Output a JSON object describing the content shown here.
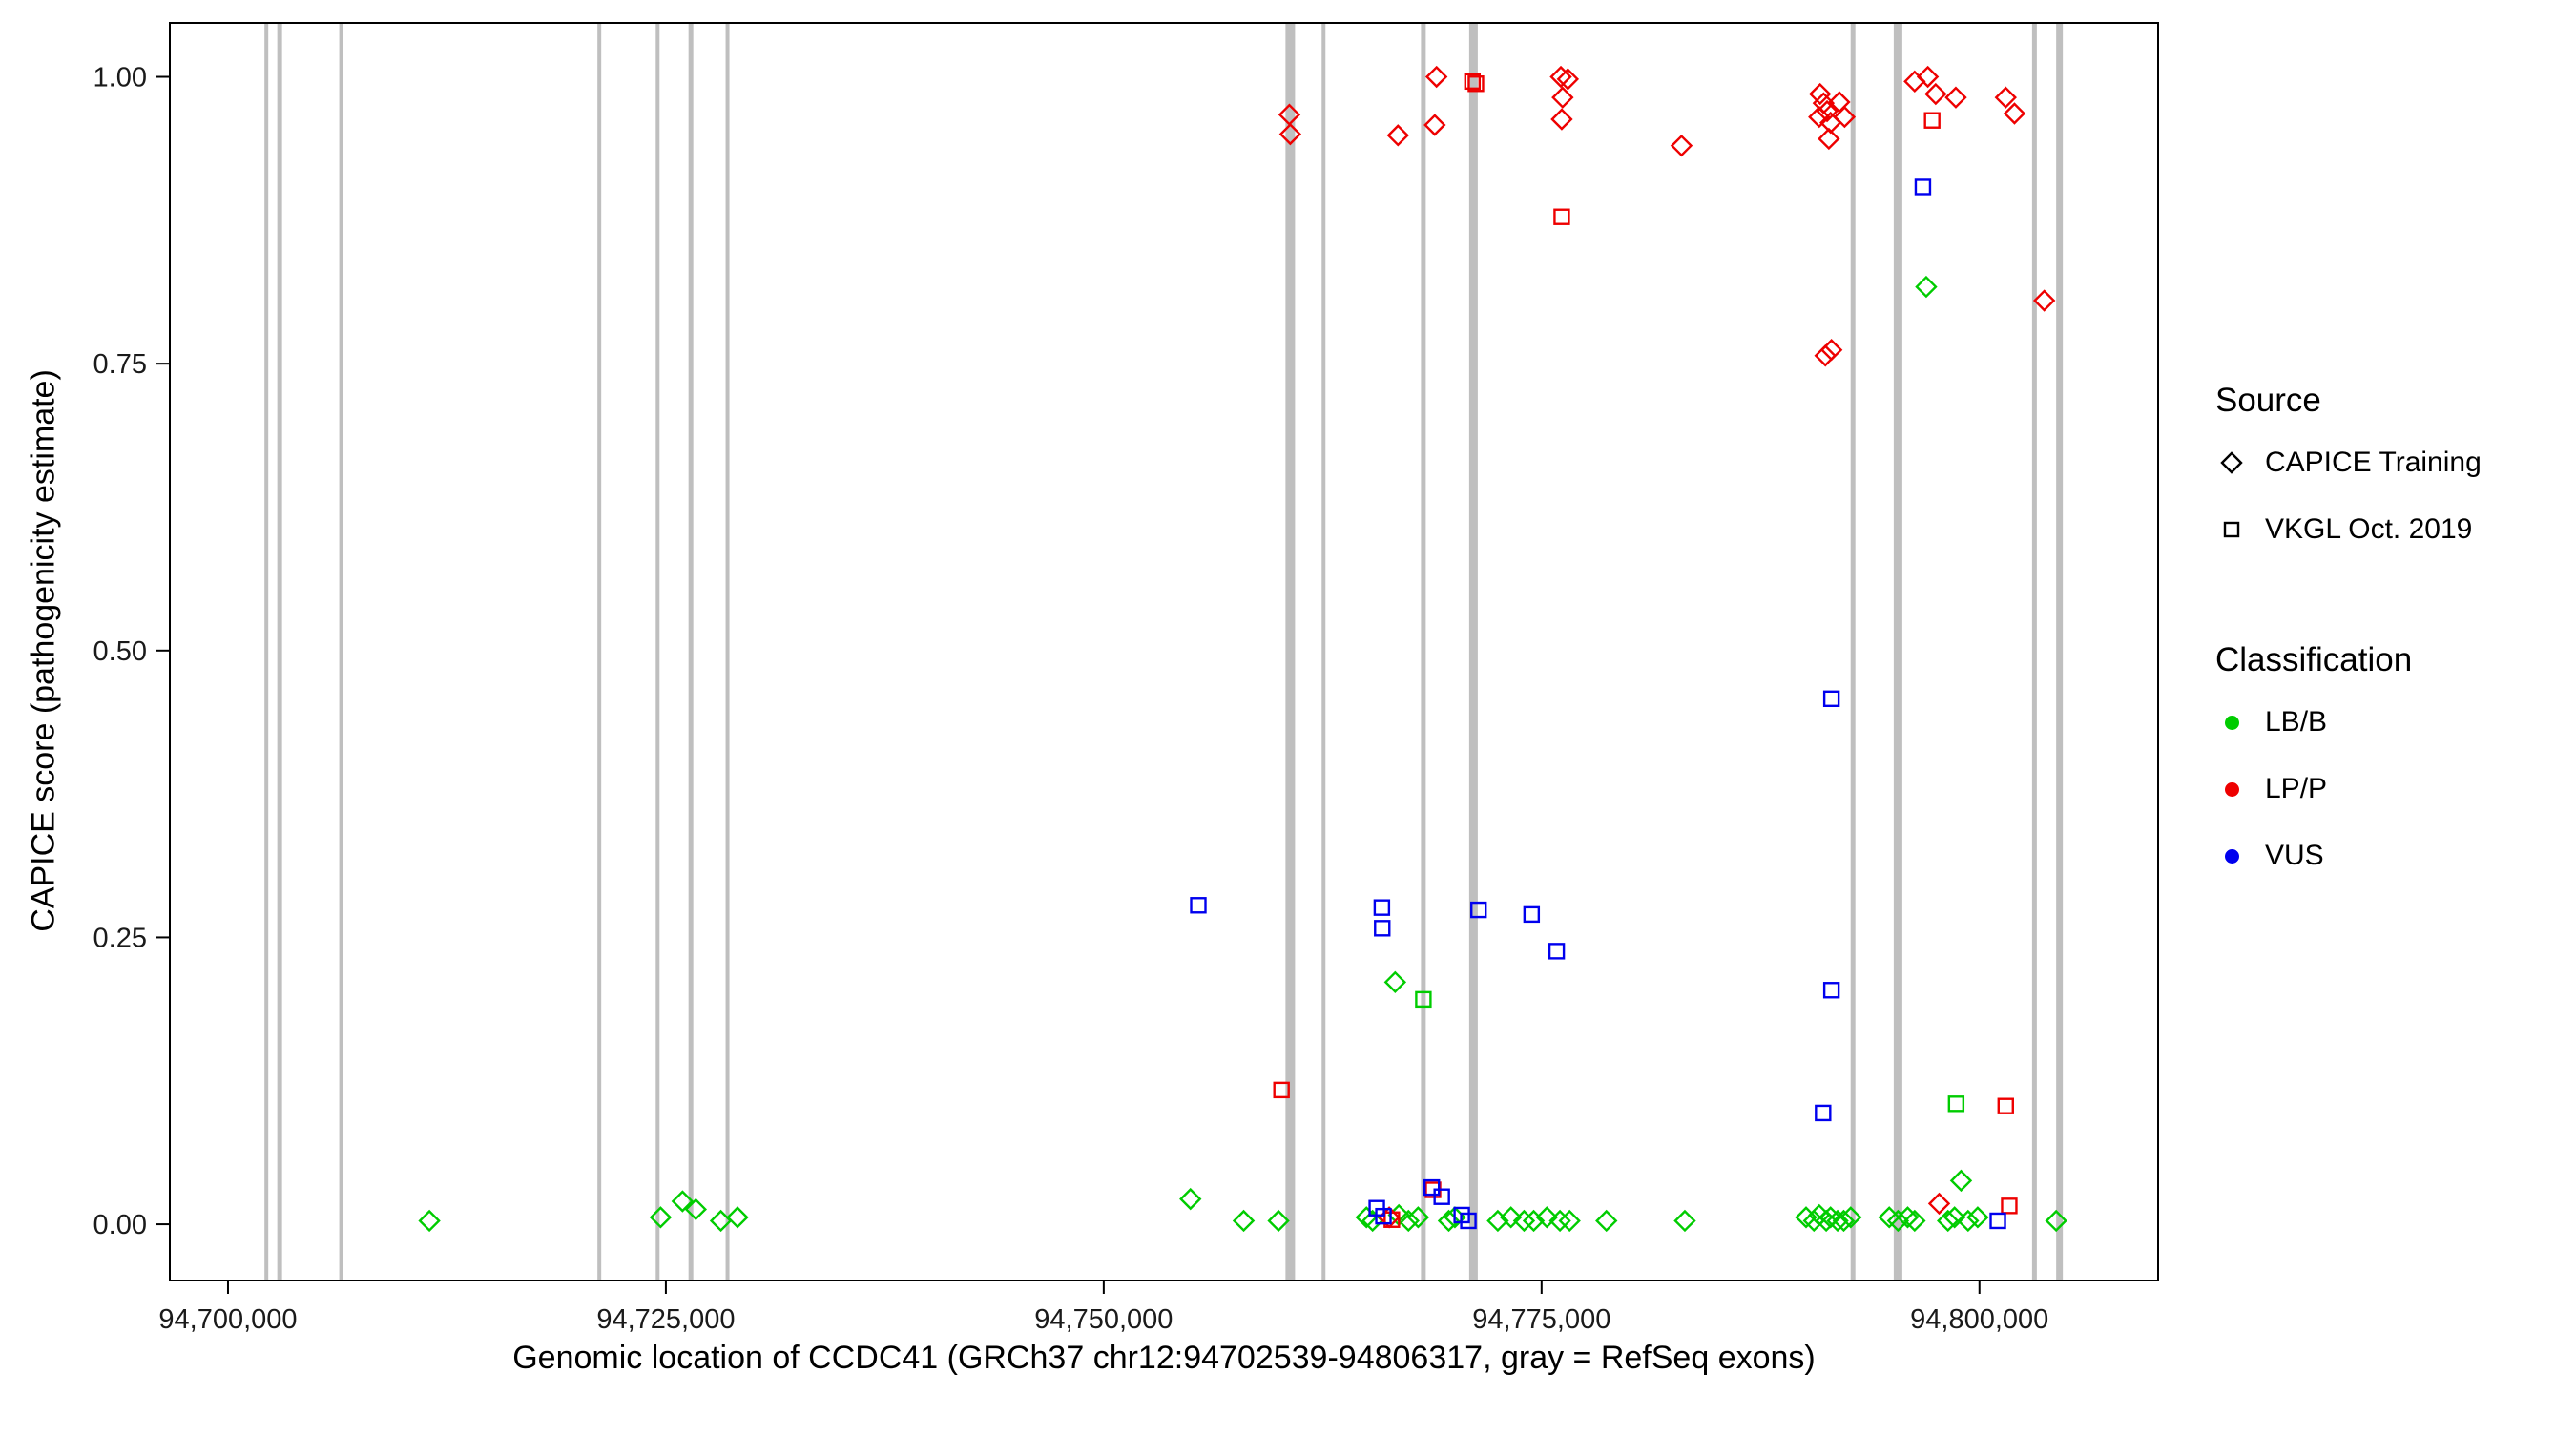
{
  "colors": {
    "lbb": "#00CC00",
    "lpp": "#EE0000",
    "vus": "#0000EE",
    "exon": "#BFBFBF",
    "axis": "#000000"
  },
  "legend": {
    "source": {
      "title": "Source",
      "items": [
        {
          "label": "CAPICE Training",
          "shape": "diamond"
        },
        {
          "label": "VKGL Oct. 2019",
          "shape": "square"
        }
      ]
    },
    "classification": {
      "title": "Classification",
      "items": [
        {
          "label": "LB/B",
          "color_key": "lbb"
        },
        {
          "label": "LP/P",
          "color_key": "lpp"
        },
        {
          "label": "VUS",
          "color_key": "vus"
        }
      ]
    }
  },
  "chart_data": {
    "type": "scatter",
    "title": "",
    "xlabel": "Genomic location of CCDC41 (GRCh37 chr12:94702539-94806317, gray = RefSeq exons)",
    "ylabel": "CAPICE score (pathogenicity estimate)",
    "xlim": [
      94696678,
      94810200
    ],
    "ylim": [
      -0.049,
      1.047
    ],
    "grid": false,
    "legend_position": "right",
    "x_ticks": [
      {
        "value": 94700000,
        "label": "94,700,000"
      },
      {
        "value": 94725000,
        "label": "94,725,000"
      },
      {
        "value": 94750000,
        "label": "94,750,000"
      },
      {
        "value": 94775000,
        "label": "94,775,000"
      },
      {
        "value": 94800000,
        "label": "94,800,000"
      }
    ],
    "y_ticks": [
      {
        "value": 0.0,
        "label": "0.00"
      },
      {
        "value": 0.25,
        "label": "0.25"
      },
      {
        "value": 0.5,
        "label": "0.50"
      },
      {
        "value": 0.75,
        "label": "0.75"
      },
      {
        "value": 1.0,
        "label": "1.00"
      }
    ],
    "exons": [
      [
        94702190,
        4
      ],
      [
        94702950,
        5
      ],
      [
        94706460,
        4
      ],
      [
        94721200,
        4
      ],
      [
        94724530,
        4
      ],
      [
        94726430,
        5
      ],
      [
        94728520,
        4
      ],
      [
        94760650,
        10
      ],
      [
        94762550,
        4
      ],
      [
        94768250,
        5
      ],
      [
        94771110,
        9
      ],
      [
        94792780,
        5
      ],
      [
        94795350,
        9
      ],
      [
        94803140,
        5
      ],
      [
        94804570,
        7
      ]
    ],
    "series": [
      {
        "source": "CAPICE Training",
        "classification": "LB/B",
        "shape": "diamond",
        "color_key": "lbb",
        "points": [
          [
            94711500,
            0.003
          ],
          [
            94724700,
            0.006
          ],
          [
            94725950,
            0.02
          ],
          [
            94726710,
            0.013
          ],
          [
            94728140,
            0.003
          ],
          [
            94729090,
            0.006
          ],
          [
            94754950,
            0.022
          ],
          [
            94757990,
            0.003
          ],
          [
            94759980,
            0.003
          ],
          [
            94766640,
            0.211
          ],
          [
            94765000,
            0.006
          ],
          [
            94765350,
            0.003
          ],
          [
            94766850,
            0.008
          ],
          [
            94767400,
            0.003
          ],
          [
            94767950,
            0.006
          ],
          [
            94769700,
            0.003
          ],
          [
            94770050,
            0.006
          ],
          [
            94772500,
            0.003
          ],
          [
            94773250,
            0.006
          ],
          [
            94774000,
            0.003
          ],
          [
            94774550,
            0.003
          ],
          [
            94775300,
            0.006
          ],
          [
            94776050,
            0.003
          ],
          [
            94776600,
            0.003
          ],
          [
            94778700,
            0.003
          ],
          [
            94783180,
            0.003
          ],
          [
            94790100,
            0.006
          ],
          [
            94790550,
            0.003
          ],
          [
            94790850,
            0.008
          ],
          [
            94791250,
            0.003
          ],
          [
            94791500,
            0.006
          ],
          [
            94791900,
            0.003
          ],
          [
            94792250,
            0.003
          ],
          [
            94792650,
            0.006
          ],
          [
            94794850,
            0.006
          ],
          [
            94795350,
            0.003
          ],
          [
            94795900,
            0.006
          ],
          [
            94796300,
            0.003
          ],
          [
            94796960,
            0.817
          ],
          [
            94798200,
            0.003
          ],
          [
            94798580,
            0.006
          ],
          [
            94798950,
            0.038
          ],
          [
            94799350,
            0.003
          ],
          [
            94799900,
            0.006
          ],
          [
            94804380,
            0.003
          ]
        ]
      },
      {
        "source": "CAPICE Training",
        "classification": "LP/P",
        "shape": "diamond",
        "color_key": "lpp",
        "points": [
          [
            94760600,
            0.967
          ],
          [
            94760650,
            0.95
          ],
          [
            94766800,
            0.949
          ],
          [
            94769000,
            1.0
          ],
          [
            94768900,
            0.958
          ],
          [
            94776100,
            1.0
          ],
          [
            94776500,
            0.998
          ],
          [
            94776200,
            0.982
          ],
          [
            94776150,
            0.963
          ],
          [
            94782990,
            0.94
          ],
          [
            94790900,
            0.985
          ],
          [
            94791100,
            0.977
          ],
          [
            94791300,
            0.97
          ],
          [
            94790850,
            0.965
          ],
          [
            94791500,
            0.96
          ],
          [
            94792000,
            0.978
          ],
          [
            94792300,
            0.965
          ],
          [
            94791400,
            0.946
          ],
          [
            94791550,
            0.762
          ],
          [
            94791200,
            0.757
          ],
          [
            94796300,
            0.996
          ],
          [
            94797050,
            1.0
          ],
          [
            94797500,
            0.985
          ],
          [
            94798650,
            0.982
          ],
          [
            94801500,
            0.982
          ],
          [
            94802000,
            0.968
          ],
          [
            94803700,
            0.805
          ],
          [
            94797700,
            0.018
          ],
          [
            94766300,
            0.006
          ]
        ]
      },
      {
        "source": "VKGL Oct. 2019",
        "classification": "LB/B",
        "shape": "square",
        "color_key": "lbb",
        "points": [
          [
            94768250,
            0.196
          ],
          [
            94798670,
            0.105
          ]
        ]
      },
      {
        "source": "VKGL Oct. 2019",
        "classification": "LP/P",
        "shape": "square",
        "color_key": "lpp",
        "points": [
          [
            94771050,
            0.996
          ],
          [
            94771250,
            0.994
          ],
          [
            94776150,
            0.878
          ],
          [
            94760150,
            0.117
          ],
          [
            94797300,
            0.962
          ],
          [
            94801500,
            0.103
          ],
          [
            94801700,
            0.016
          ],
          [
            94768800,
            0.03
          ],
          [
            94766450,
            0.004
          ]
        ]
      },
      {
        "source": "VKGL Oct. 2019",
        "classification": "VUS",
        "shape": "square",
        "color_key": "vus",
        "points": [
          [
            94755400,
            0.278
          ],
          [
            94765880,
            0.276
          ],
          [
            94765900,
            0.258
          ],
          [
            94771400,
            0.274
          ],
          [
            94774430,
            0.27
          ],
          [
            94775860,
            0.238
          ],
          [
            94791550,
            0.458
          ],
          [
            94791550,
            0.204
          ],
          [
            94791070,
            0.097
          ],
          [
            94796770,
            0.904
          ],
          [
            94765590,
            0.014
          ],
          [
            94765970,
            0.007
          ],
          [
            94768730,
            0.032
          ],
          [
            94769300,
            0.024
          ],
          [
            94770440,
            0.008
          ],
          [
            94770820,
            0.003
          ],
          [
            94801050,
            0.003
          ]
        ]
      }
    ]
  }
}
